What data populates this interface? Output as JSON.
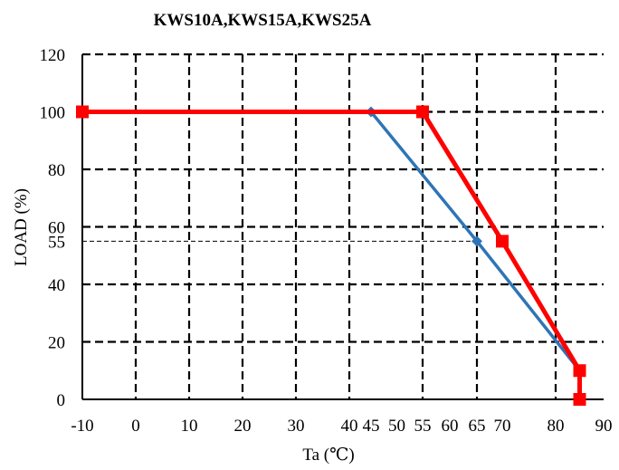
{
  "chart_data": {
    "type": "line",
    "title": "KWS10A,KWS15A,KWS25A",
    "xlabel": "Ta (℃)",
    "ylabel": "LOAD (%)",
    "xlim": [
      -10,
      90
    ],
    "ylim": [
      0,
      120
    ],
    "x_ticks": [
      -10,
      0,
      10,
      20,
      30,
      40,
      45,
      50,
      55,
      60,
      65,
      70,
      80,
      90
    ],
    "x_tick_labels": [
      "-10",
      "0",
      "10",
      "20",
      "30",
      "40",
      "45",
      "50",
      "55",
      "60",
      "65",
      "70",
      "80",
      "90"
    ],
    "y_ticks": [
      0,
      20,
      40,
      55,
      60,
      80,
      100,
      120
    ],
    "y_tick_labels": [
      "0",
      "20",
      "40",
      "55",
      "60",
      "80",
      "100",
      "120"
    ],
    "x_gridlines": [
      0,
      10,
      20,
      30,
      40,
      55,
      65,
      80
    ],
    "y_gridlines": [
      20,
      40,
      60,
      80,
      100,
      120
    ],
    "reference_line": {
      "y": 55,
      "x_to": 65
    },
    "series": [
      {
        "color": "#2e75b6",
        "marker": "diamond",
        "points": [
          [
            45,
            100
          ],
          [
            65,
            55
          ],
          [
            85,
            10
          ]
        ]
      },
      {
        "color": "#ff0000",
        "marker": "square",
        "points": [
          [
            -10,
            100
          ],
          [
            55,
            100
          ],
          [
            70,
            55
          ],
          [
            85,
            10
          ],
          [
            85,
            0
          ]
        ]
      }
    ]
  }
}
